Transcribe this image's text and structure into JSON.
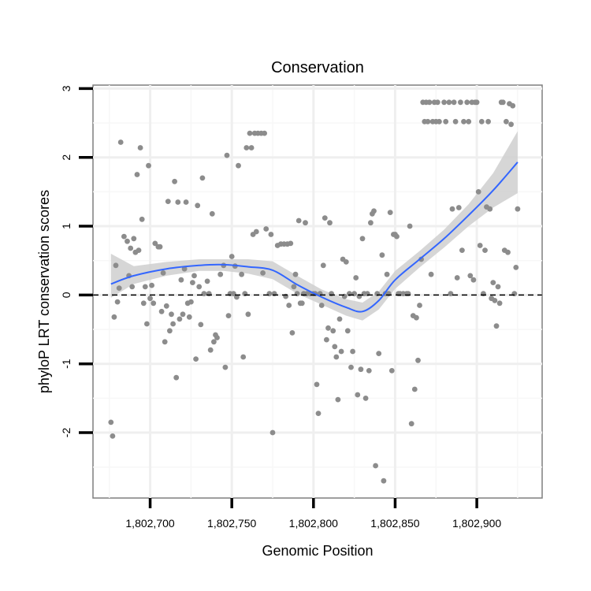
{
  "chart_data": {
    "type": "scatter",
    "title": "Conservation",
    "xlabel": "Genomic Position",
    "ylabel": "phyloP LRT conservation scores",
    "xlim": [
      1802665,
      1802940
    ],
    "ylim": [
      -2.95,
      3.05
    ],
    "x_ticks": [
      1802700,
      1802750,
      1802800,
      1802850,
      1802900
    ],
    "x_tick_labels": [
      "1,802,700",
      "1,802,750",
      "1,802,800",
      "1,802,850",
      "1,802,900"
    ],
    "y_ticks": [
      -2,
      -1,
      0,
      1,
      2,
      3
    ],
    "y_tick_labels": [
      "-2",
      "-1",
      "0",
      "1",
      "2",
      "3"
    ],
    "grid": true,
    "reference_line": {
      "y": 0,
      "style": "dashed"
    },
    "point_color": "#8c8c8c",
    "smooth_color": "#3366ff",
    "ribbon_color": "#cfcfcf",
    "points": [
      [
        1802676,
        -1.85
      ],
      [
        1802677,
        -2.05
      ],
      [
        1802678,
        -0.32
      ],
      [
        1802679,
        0.43
      ],
      [
        1802680,
        -0.1
      ],
      [
        1802681,
        0.1
      ],
      [
        1802682,
        2.22
      ],
      [
        1802684,
        0.85
      ],
      [
        1802686,
        0.78
      ],
      [
        1802687,
        0.28
      ],
      [
        1802688,
        0.68
      ],
      [
        1802689,
        0.12
      ],
      [
        1802690,
        0.82
      ],
      [
        1802691,
        0.62
      ],
      [
        1802692,
        1.75
      ],
      [
        1802693,
        0.65
      ],
      [
        1802694,
        2.14
      ],
      [
        1802695,
        1.1
      ],
      [
        1802696,
        -0.12
      ],
      [
        1802697,
        0.12
      ],
      [
        1802698,
        -0.42
      ],
      [
        1802699,
        1.88
      ],
      [
        1802700,
        -0.05
      ],
      [
        1802701,
        0.14
      ],
      [
        1802702,
        -0.12
      ],
      [
        1802703,
        0.75
      ],
      [
        1802705,
        0.7
      ],
      [
        1802706,
        0.7
      ],
      [
        1802707,
        -0.24
      ],
      [
        1802708,
        0.32
      ],
      [
        1802709,
        -0.68
      ],
      [
        1802710,
        -0.16
      ],
      [
        1802711,
        1.36
      ],
      [
        1802712,
        -0.52
      ],
      [
        1802713,
        -0.28
      ],
      [
        1802714,
        -0.42
      ],
      [
        1802715,
        1.65
      ],
      [
        1802716,
        -1.2
      ],
      [
        1802717,
        1.35
      ],
      [
        1802718,
        -0.35
      ],
      [
        1802719,
        0.22
      ],
      [
        1802720,
        -0.28
      ],
      [
        1802721,
        0.38
      ],
      [
        1802722,
        1.35
      ],
      [
        1802723,
        -0.12
      ],
      [
        1802724,
        -0.32
      ],
      [
        1802725,
        -0.1
      ],
      [
        1802726,
        0.18
      ],
      [
        1802727,
        0.28
      ],
      [
        1802728,
        -0.93
      ],
      [
        1802729,
        1.3
      ],
      [
        1802730,
        0.12
      ],
      [
        1802731,
        -0.43
      ],
      [
        1802732,
        1.7
      ],
      [
        1802733,
        0.02
      ],
      [
        1802735,
        0.2
      ],
      [
        1802736,
        0.02
      ],
      [
        1802737,
        -0.8
      ],
      [
        1802738,
        1.18
      ],
      [
        1802739,
        -0.68
      ],
      [
        1802740,
        -0.58
      ],
      [
        1802741,
        -0.62
      ],
      [
        1802743,
        0.3
      ],
      [
        1802745,
        0.43
      ],
      [
        1802746,
        -1.05
      ],
      [
        1802747,
        2.03
      ],
      [
        1802748,
        -0.3
      ],
      [
        1802749,
        0.02
      ],
      [
        1802750,
        0.56
      ],
      [
        1802751,
        0.02
      ],
      [
        1802752,
        0.42
      ],
      [
        1802753,
        -0.03
      ],
      [
        1802754,
        1.88
      ],
      [
        1802756,
        0.3
      ],
      [
        1802757,
        -0.9
      ],
      [
        1802758,
        0.02
      ],
      [
        1802759,
        2.14
      ],
      [
        1802760,
        -0.28
      ],
      [
        1802761,
        2.35
      ],
      [
        1802762,
        2.14
      ],
      [
        1802763,
        0.88
      ],
      [
        1802764,
        2.35
      ],
      [
        1802765,
        0.92
      ],
      [
        1802766,
        2.35
      ],
      [
        1802768,
        2.35
      ],
      [
        1802769,
        0.32
      ],
      [
        1802770,
        2.35
      ],
      [
        1802771,
        0.96
      ],
      [
        1802773,
        0.02
      ],
      [
        1802774,
        0.88
      ],
      [
        1802775,
        -2.0
      ],
      [
        1802776,
        0.02
      ],
      [
        1802778,
        0.72
      ],
      [
        1802780,
        0.74
      ],
      [
        1802782,
        0.74
      ],
      [
        1802783,
        -0.02
      ],
      [
        1802784,
        0.74
      ],
      [
        1802785,
        -0.15
      ],
      [
        1802786,
        0.75
      ],
      [
        1802787,
        -0.55
      ],
      [
        1802788,
        0.12
      ],
      [
        1802789,
        0.3
      ],
      [
        1802790,
        0.02
      ],
      [
        1802791,
        1.08
      ],
      [
        1802792,
        -0.12
      ],
      [
        1802793,
        -0.12
      ],
      [
        1802794,
        0.02
      ],
      [
        1802795,
        1.05
      ],
      [
        1802796,
        0.02
      ],
      [
        1802798,
        0.02
      ],
      [
        1802800,
        0.02
      ],
      [
        1802801,
        0.02
      ],
      [
        1802802,
        -1.3
      ],
      [
        1802803,
        -1.72
      ],
      [
        1802804,
        0.02
      ],
      [
        1802805,
        -0.15
      ],
      [
        1802806,
        0.43
      ],
      [
        1802807,
        1.12
      ],
      [
        1802808,
        -0.65
      ],
      [
        1802809,
        -0.48
      ],
      [
        1802810,
        1.05
      ],
      [
        1802811,
        0.02
      ],
      [
        1802812,
        -0.52
      ],
      [
        1802813,
        -0.75
      ],
      [
        1802814,
        -0.9
      ],
      [
        1802815,
        -1.52
      ],
      [
        1802816,
        -0.35
      ],
      [
        1802817,
        -0.82
      ],
      [
        1802818,
        0.52
      ],
      [
        1802819,
        -0.02
      ],
      [
        1802820,
        0.48
      ],
      [
        1802821,
        -0.52
      ],
      [
        1802822,
        0.02
      ],
      [
        1802823,
        -1.05
      ],
      [
        1802824,
        -0.82
      ],
      [
        1802825,
        0.02
      ],
      [
        1802826,
        0.25
      ],
      [
        1802827,
        -1.45
      ],
      [
        1802828,
        -0.02
      ],
      [
        1802829,
        -1.08
      ],
      [
        1802830,
        0.82
      ],
      [
        1802831,
        0.02
      ],
      [
        1802832,
        -1.5
      ],
      [
        1802833,
        0.02
      ],
      [
        1802834,
        -1.1
      ],
      [
        1802835,
        1.05
      ],
      [
        1802836,
        1.18
      ],
      [
        1802837,
        1.22
      ],
      [
        1802838,
        -2.48
      ],
      [
        1802839,
        0.02
      ],
      [
        1802840,
        -0.85
      ],
      [
        1802842,
        0.58
      ],
      [
        1802843,
        -2.7
      ],
      [
        1802844,
        0.02
      ],
      [
        1802845,
        0.3
      ],
      [
        1802846,
        0.02
      ],
      [
        1802847,
        1.2
      ],
      [
        1802848,
        -1.1
      ],
      [
        1802849,
        0.88
      ],
      [
        1802850,
        0.88
      ],
      [
        1802851,
        0.85
      ],
      [
        1802852,
        0.02
      ],
      [
        1802853,
        0.02
      ],
      [
        1802855,
        0.02
      ],
      [
        1802857,
        0.02
      ],
      [
        1802858,
        0.02
      ],
      [
        1802859,
        1.0
      ],
      [
        1802860,
        -1.87
      ],
      [
        1802861,
        -0.3
      ],
      [
        1802862,
        -1.37
      ],
      [
        1802863,
        -0.33
      ],
      [
        1802864,
        -0.95
      ],
      [
        1802865,
        -0.15
      ],
      [
        1802866,
        0.52
      ],
      [
        1802867,
        2.8
      ],
      [
        1802868,
        2.52
      ],
      [
        1802869,
        2.8
      ],
      [
        1802870,
        2.52
      ],
      [
        1802871,
        2.8
      ],
      [
        1802872,
        0.3
      ],
      [
        1802873,
        2.52
      ],
      [
        1802874,
        2.8
      ],
      [
        1802875,
        2.52
      ],
      [
        1802876,
        2.8
      ],
      [
        1802877,
        2.52
      ],
      [
        1802880,
        2.8
      ],
      [
        1802881,
        2.52
      ],
      [
        1802883,
        2.8
      ],
      [
        1802884,
        0.02
      ],
      [
        1802885,
        1.25
      ],
      [
        1802886,
        2.8
      ],
      [
        1802887,
        2.52
      ],
      [
        1802888,
        0.25
      ],
      [
        1802889,
        1.27
      ],
      [
        1802890,
        2.8
      ],
      [
        1802891,
        0.65
      ],
      [
        1802892,
        2.52
      ],
      [
        1802894,
        2.8
      ],
      [
        1802895,
        2.52
      ],
      [
        1802896,
        0.28
      ],
      [
        1802897,
        2.8
      ],
      [
        1802898,
        0.22
      ],
      [
        1802899,
        2.8
      ],
      [
        1802900,
        2.8
      ],
      [
        1802901,
        1.5
      ],
      [
        1802902,
        0.72
      ],
      [
        1802903,
        2.52
      ],
      [
        1802904,
        0.02
      ],
      [
        1802905,
        0.65
      ],
      [
        1802906,
        1.28
      ],
      [
        1802907,
        2.52
      ],
      [
        1802908,
        1.25
      ],
      [
        1802909,
        -0.05
      ],
      [
        1802910,
        0.18
      ],
      [
        1802911,
        -0.08
      ],
      [
        1802912,
        -0.45
      ],
      [
        1802913,
        0.12
      ],
      [
        1802914,
        -0.12
      ],
      [
        1802915,
        2.8
      ],
      [
        1802916,
        2.8
      ],
      [
        1802917,
        0.65
      ],
      [
        1802918,
        2.52
      ],
      [
        1802919,
        0.62
      ],
      [
        1802920,
        2.78
      ],
      [
        1802921,
        2.48
      ],
      [
        1802922,
        2.75
      ],
      [
        1802923,
        0.02
      ],
      [
        1802924,
        0.4
      ],
      [
        1802925,
        1.25
      ]
    ],
    "smooth": {
      "x": [
        1802676,
        1802690,
        1802710,
        1802730,
        1802745,
        1802760,
        1802775,
        1802790,
        1802805,
        1802820,
        1802830,
        1802840,
        1802850,
        1802865,
        1802880,
        1802895,
        1802910,
        1802925
      ],
      "y": [
        0.16,
        0.28,
        0.38,
        0.43,
        0.44,
        0.41,
        0.36,
        0.15,
        -0.03,
        -0.18,
        -0.24,
        -0.08,
        0.22,
        0.52,
        0.82,
        1.16,
        1.52,
        1.93
      ],
      "lower": [
        -0.04,
        0.16,
        0.28,
        0.35,
        0.35,
        0.31,
        0.23,
        0.02,
        -0.14,
        -0.3,
        -0.37,
        -0.21,
        0.09,
        0.4,
        0.69,
        1.0,
        1.27,
        1.48
      ],
      "upper": [
        0.6,
        0.42,
        0.48,
        0.52,
        0.52,
        0.52,
        0.49,
        0.28,
        0.08,
        -0.06,
        -0.11,
        0.05,
        0.35,
        0.64,
        0.95,
        1.32,
        1.77,
        2.38
      ]
    }
  }
}
